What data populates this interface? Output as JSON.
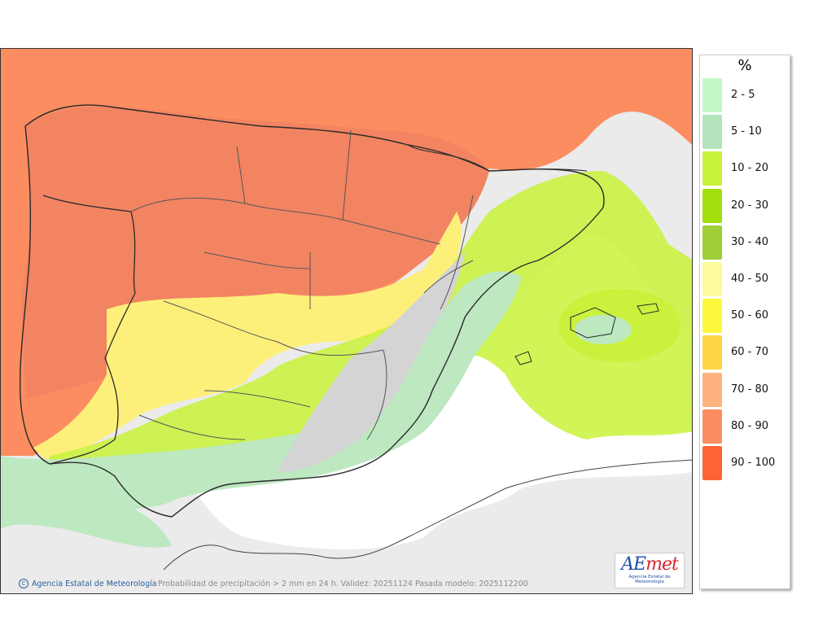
{
  "legend": {
    "title": "%",
    "items": [
      {
        "label": "2 - 5",
        "color": "#c4f7c8"
      },
      {
        "label": "5 - 10",
        "color": "#b4e4bc"
      },
      {
        "label": "10 - 20",
        "color": "#c9f23a"
      },
      {
        "label": "20 - 30",
        "color": "#a3df0d"
      },
      {
        "label": "30 - 40",
        "color": "#9ecf38"
      },
      {
        "label": "40 - 50",
        "color": "#fdfa9c"
      },
      {
        "label": "50 - 60",
        "color": "#fdf73c"
      },
      {
        "label": "60 - 70",
        "color": "#fdd445"
      },
      {
        "label": "70 - 80",
        "color": "#fdb27e"
      },
      {
        "label": "80 - 90",
        "color": "#fc8d61"
      },
      {
        "label": "90 - 100",
        "color": "#fc6433"
      }
    ]
  },
  "footer": {
    "credit": "Agencia Estatal de Meteorología",
    "caption": "Probabilidad de precipitación > 2 mm en 24 h. Validez: 20251124 Pasada modelo: 2025112200"
  },
  "logo": {
    "text_a": "AE",
    "text_b": "met",
    "subtitle": "Agencia Estatal de Meteorología"
  },
  "map": {
    "sea_color": "#ffffff",
    "no_data_color": "#ebebeb",
    "border_color": "#2a2a2a"
  }
}
